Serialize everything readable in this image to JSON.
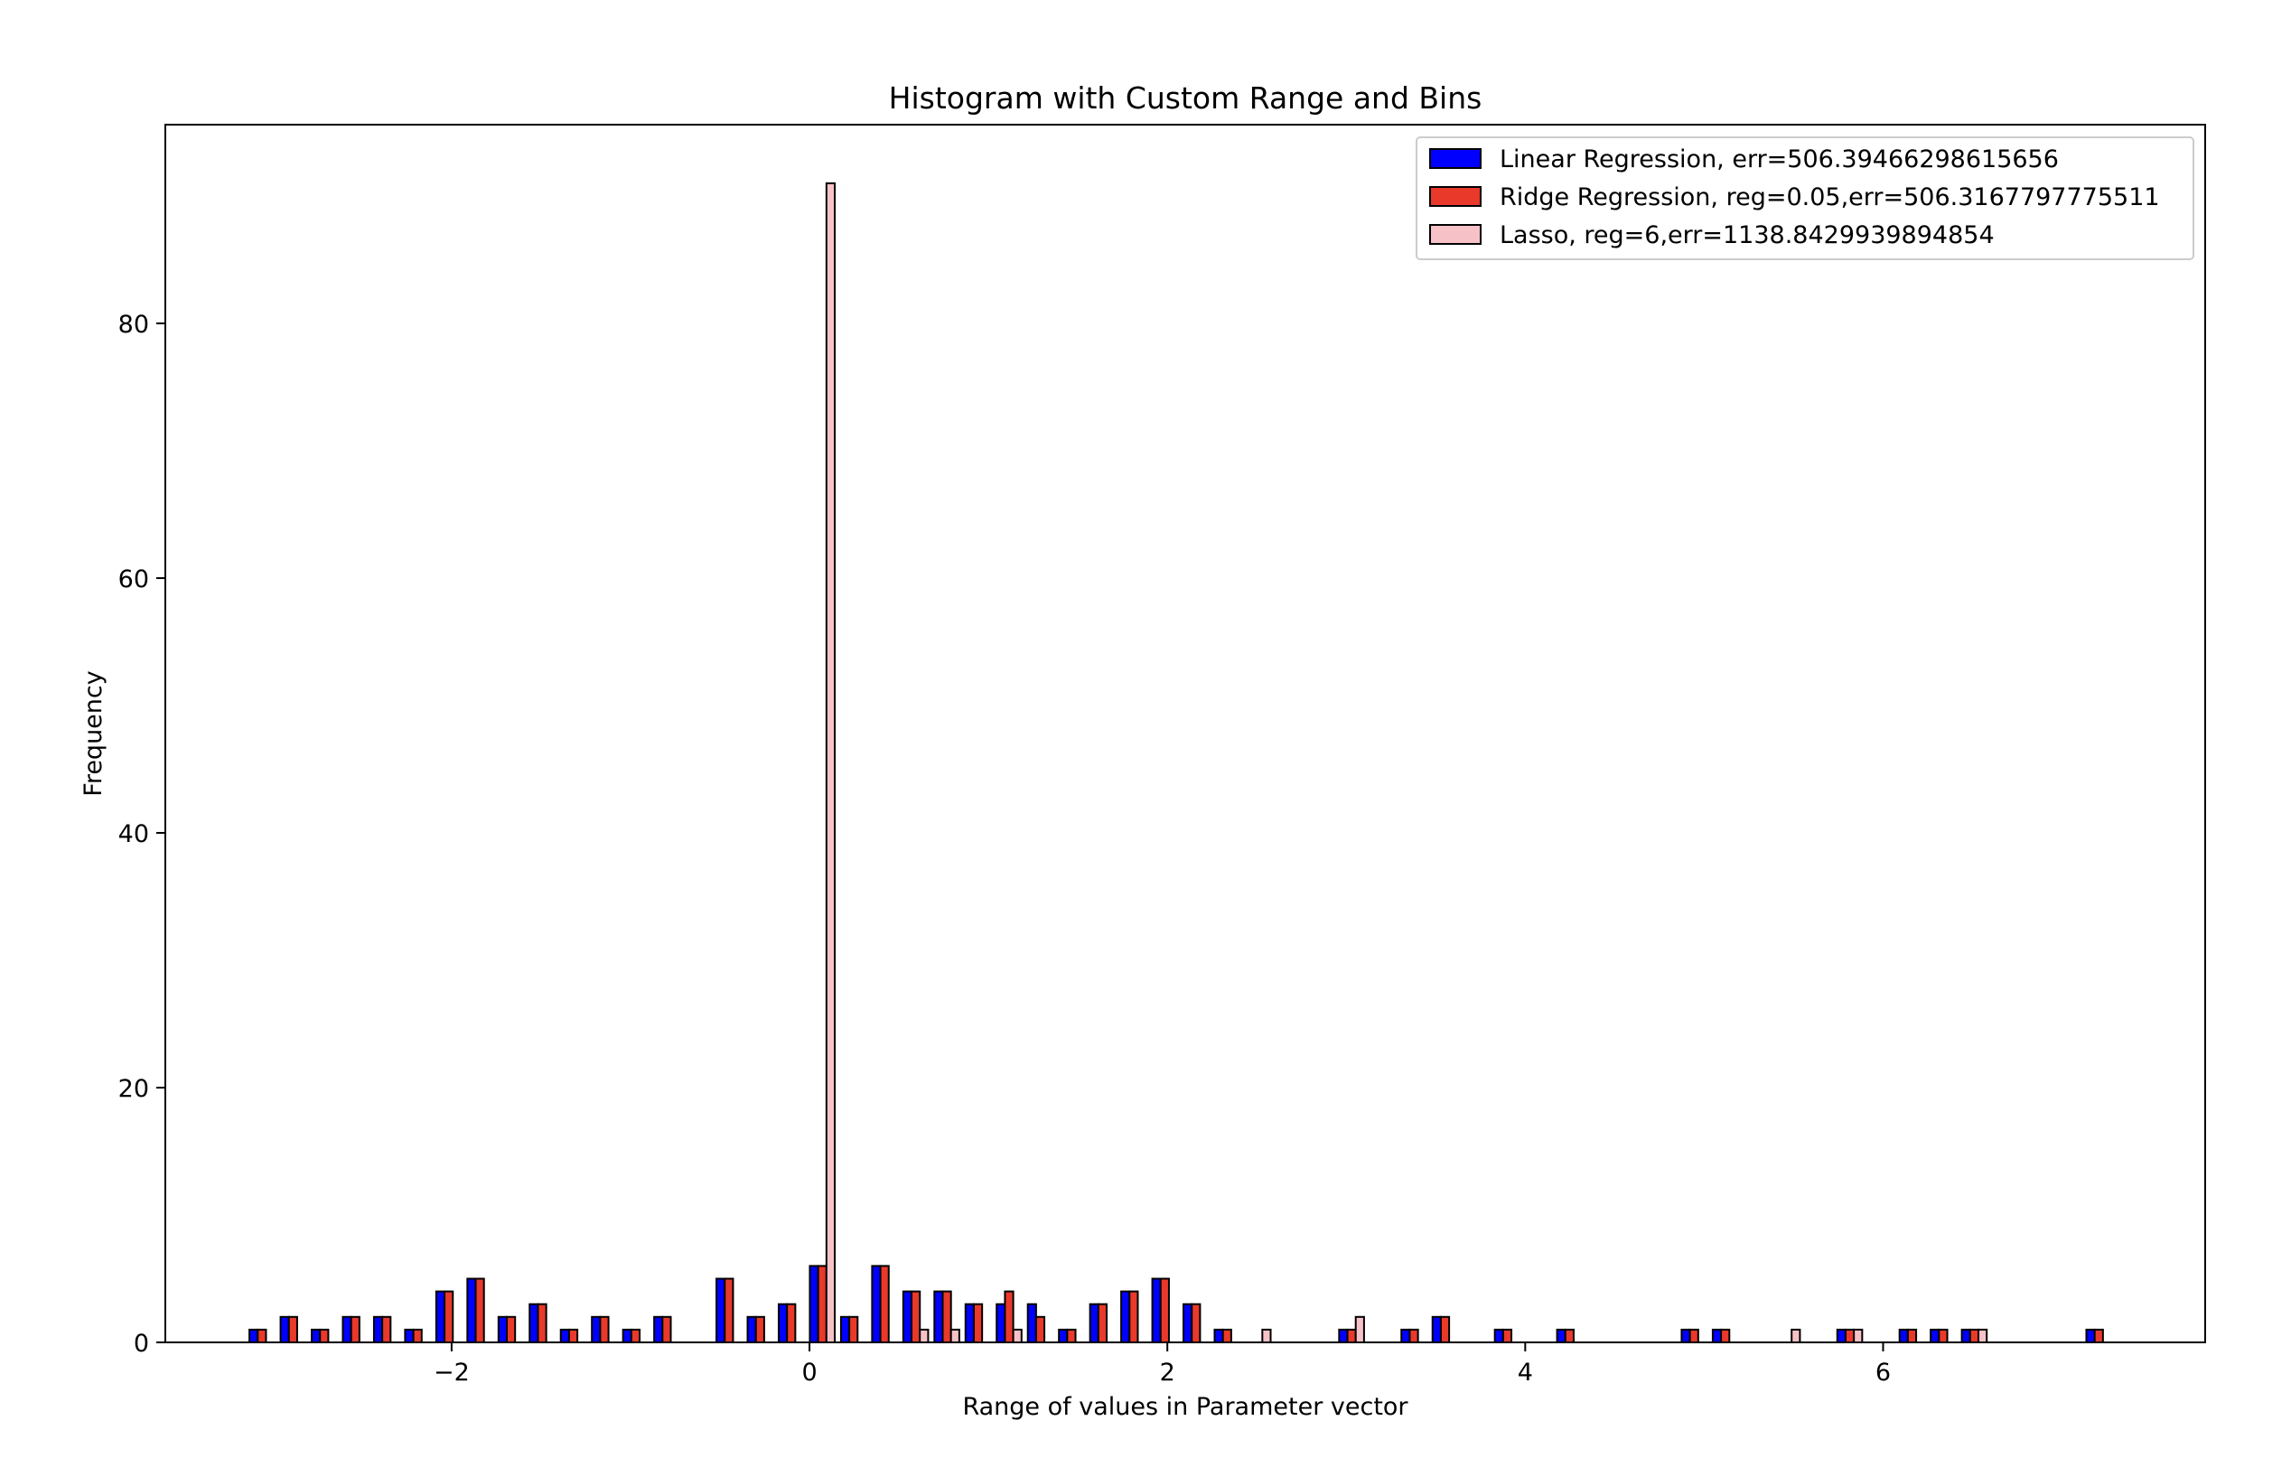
{
  "chart_data": {
    "type": "bar",
    "title": "Histogram with Custom Range and Bins",
    "xlabel": "Range of values in Parameter vector",
    "ylabel": "Frequency",
    "xlim": [
      -3.6,
      7.8
    ],
    "ylim": [
      0,
      95.6
    ],
    "xticks": [
      -2,
      0,
      2,
      4,
      6
    ],
    "yticks": [
      0,
      20,
      40,
      60,
      80
    ],
    "legend_position": "top-right",
    "grid": false,
    "bin_width": 0.174,
    "bin_starts": [
      -3.13,
      -2.956,
      -2.782,
      -2.608,
      -2.434,
      -2.26,
      -2.086,
      -1.912,
      -1.738,
      -1.564,
      -1.39,
      -1.216,
      -1.042,
      -0.868,
      -0.694,
      -0.52,
      -0.346,
      -0.172,
      0.002,
      0.176,
      0.35,
      0.524,
      0.698,
      0.872,
      1.046,
      1.22,
      1.394,
      1.568,
      1.742,
      1.916,
      2.09,
      2.264,
      2.438,
      2.612,
      2.786,
      2.96,
      3.134,
      3.308,
      3.482,
      3.656,
      3.83,
      4.004,
      4.178,
      4.352,
      4.526,
      4.7,
      4.874,
      5.048,
      5.222,
      5.396,
      5.57,
      5.744,
      5.918,
      6.092,
      6.266,
      6.44,
      6.614,
      6.788,
      6.962,
      7.136
    ],
    "series": [
      {
        "name": "Linear Regression, err=506.39466298615656",
        "color": "#0000ff",
        "values": [
          1,
          2,
          1,
          2,
          2,
          1,
          4,
          5,
          2,
          3,
          1,
          2,
          1,
          2,
          0,
          5,
          2,
          3,
          6,
          2,
          6,
          4,
          4,
          3,
          3,
          3,
          1,
          3,
          4,
          5,
          3,
          1,
          0,
          0,
          0,
          1,
          0,
          1,
          2,
          0,
          1,
          0,
          1,
          0,
          0,
          0,
          1,
          1,
          0,
          0,
          0,
          1,
          0,
          1,
          1,
          1,
          0,
          0,
          0,
          1
        ]
      },
      {
        "name": "Ridge Regression, reg=0.05,err=506.3167797775511",
        "color": "#e8392a",
        "values": [
          1,
          2,
          1,
          2,
          2,
          1,
          4,
          5,
          2,
          3,
          1,
          2,
          1,
          2,
          0,
          5,
          2,
          3,
          6,
          2,
          6,
          4,
          4,
          3,
          4,
          2,
          1,
          3,
          4,
          5,
          3,
          1,
          0,
          0,
          0,
          1,
          0,
          1,
          2,
          0,
          1,
          0,
          1,
          0,
          0,
          0,
          1,
          1,
          0,
          0,
          0,
          1,
          0,
          1,
          1,
          1,
          0,
          0,
          0,
          1
        ]
      },
      {
        "name": "Lasso, reg=6,err=1138.8429939894854",
        "color": "#f7c2c7",
        "values": [
          0,
          0,
          0,
          0,
          0,
          0,
          0,
          0,
          0,
          0,
          0,
          0,
          0,
          0,
          0,
          0,
          0,
          0,
          91,
          0,
          0,
          1,
          1,
          0,
          1,
          0,
          0,
          0,
          0,
          0,
          0,
          0,
          1,
          0,
          0,
          2,
          0,
          0,
          0,
          0,
          0,
          0,
          0,
          0,
          0,
          0,
          0,
          0,
          0,
          1,
          0,
          1,
          0,
          0,
          0,
          1,
          0,
          0,
          0,
          0
        ]
      }
    ]
  }
}
